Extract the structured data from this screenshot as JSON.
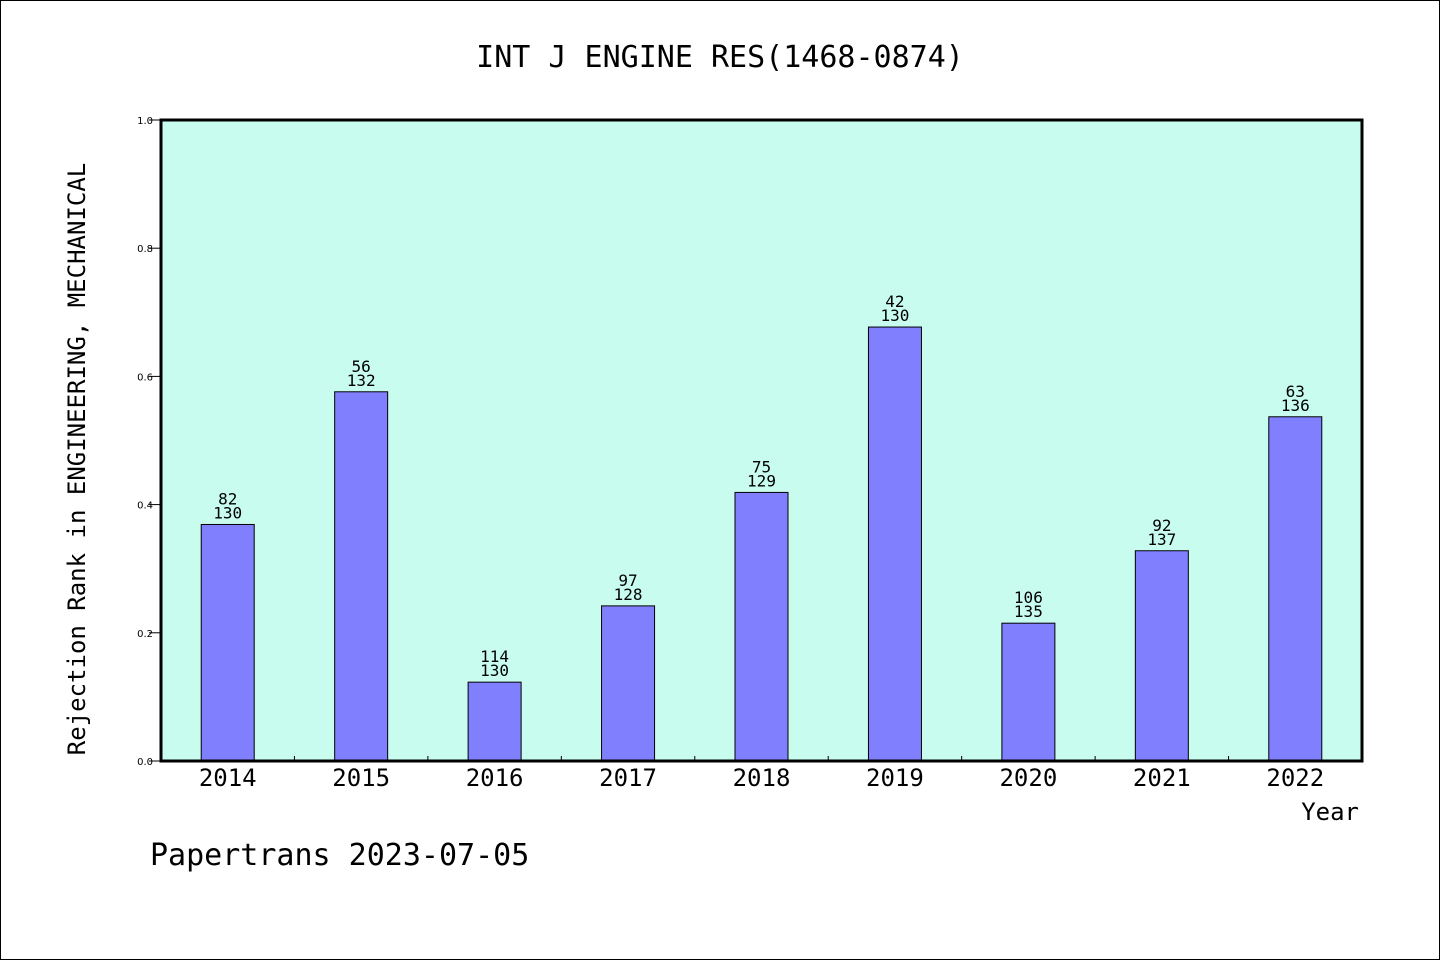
{
  "chart_data": {
    "type": "bar",
    "title": "INT J ENGINE RES(1468-0874)",
    "xlabel": "Year",
    "ylabel": "Rejection Rank in ENGINEERING, MECHANICAL",
    "categories": [
      "2014",
      "2015",
      "2016",
      "2017",
      "2018",
      "2019",
      "2020",
      "2021",
      "2022"
    ],
    "values": [
      0.369,
      0.576,
      0.123,
      0.242,
      0.419,
      0.677,
      0.215,
      0.328,
      0.537
    ],
    "bar_labels": [
      [
        "82",
        "130"
      ],
      [
        "56",
        "132"
      ],
      [
        "114",
        "130"
      ],
      [
        "97",
        "128"
      ],
      [
        "75",
        "129"
      ],
      [
        "42",
        "130"
      ],
      [
        "106",
        "135"
      ],
      [
        "92",
        "137"
      ],
      [
        "63",
        "136"
      ]
    ],
    "ylim": [
      0,
      1.0
    ],
    "yticks": [
      "0.0",
      "0.2",
      "0.4",
      "0.6",
      "0.8",
      "1.0"
    ],
    "colors": {
      "plot_background": "#c8fcef",
      "bar_fill": "#8080ff",
      "bar_stroke": "#000000"
    },
    "grid": false,
    "legend": "none"
  },
  "footer": "Papertrans 2023-07-05"
}
